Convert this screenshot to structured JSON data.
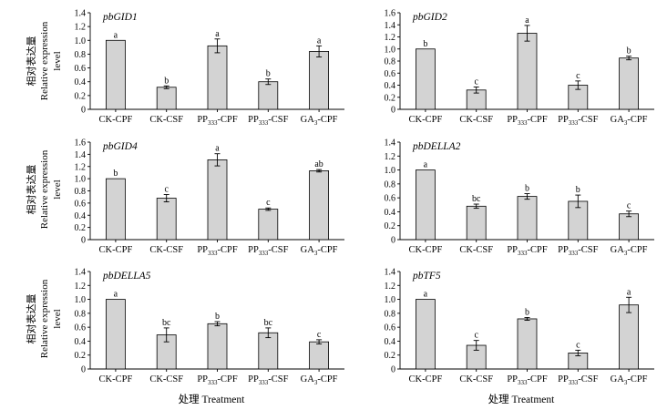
{
  "x_axis_label": "处理 Treatment",
  "y_axis_label_cn": "相对表达量",
  "y_axis_label_en1": "Relative expression",
  "y_axis_label_en2": "level",
  "chart_data": [
    {
      "type": "bar",
      "title": "pbGID1",
      "categories": [
        "CK-CPF",
        "CK-CSF",
        "PP333-CPF",
        "PP333-CSF",
        "GA3-CPF"
      ],
      "values": [
        1.0,
        0.32,
        0.92,
        0.4,
        0.84
      ],
      "errors": [
        0.0,
        0.02,
        0.1,
        0.04,
        0.08
      ],
      "labels": [
        "a",
        "b",
        "a",
        "b",
        "a"
      ],
      "ylim": [
        0,
        1.4
      ],
      "yticks": [
        0,
        0.2,
        0.4,
        0.6,
        0.8,
        1.0,
        1.2,
        1.4
      ]
    },
    {
      "type": "bar",
      "title": "pbGID2",
      "categories": [
        "CK-CPF",
        "CK-CSF",
        "PP333-CPF",
        "PP333-CSF",
        "GA3-CPF"
      ],
      "values": [
        1.0,
        0.32,
        1.26,
        0.4,
        0.85
      ],
      "errors": [
        0.0,
        0.05,
        0.13,
        0.07,
        0.03
      ],
      "labels": [
        "b",
        "c",
        "a",
        "c",
        "b"
      ],
      "ylim": [
        0,
        1.6
      ],
      "yticks": [
        0,
        0.2,
        0.4,
        0.6,
        0.8,
        1.0,
        1.2,
        1.4,
        1.6
      ]
    },
    {
      "type": "bar",
      "title": "pbGID4",
      "categories": [
        "CK-CPF",
        "CK-CSF",
        "PP333-CPF",
        "PP333-CSF",
        "GA3-CPF"
      ],
      "values": [
        1.0,
        0.68,
        1.31,
        0.5,
        1.13
      ],
      "errors": [
        0.0,
        0.06,
        0.1,
        0.02,
        0.02
      ],
      "labels": [
        "b",
        "c",
        "a",
        "c",
        "ab"
      ],
      "ylim": [
        0,
        1.6
      ],
      "yticks": [
        0,
        0.2,
        0.4,
        0.6,
        0.8,
        1.0,
        1.2,
        1.4,
        1.6
      ]
    },
    {
      "type": "bar",
      "title": "pbDELLA2",
      "categories": [
        "CK-CPF",
        "CK-CSF",
        "PP333-CPF",
        "PP333-CSF",
        "GA3-CPF"
      ],
      "values": [
        1.0,
        0.48,
        0.62,
        0.55,
        0.37
      ],
      "errors": [
        0.0,
        0.03,
        0.04,
        0.09,
        0.04
      ],
      "labels": [
        "a",
        "bc",
        "b",
        "b",
        "c"
      ],
      "ylim": [
        0,
        1.4
      ],
      "yticks": [
        0,
        0.2,
        0.4,
        0.6,
        0.8,
        1.0,
        1.2,
        1.4
      ]
    },
    {
      "type": "bar",
      "title": "pbDELLA5",
      "categories": [
        "CK-CPF",
        "CK-CSF",
        "PP333-CPF",
        "PP333-CSF",
        "GA3-CPF"
      ],
      "values": [
        1.0,
        0.49,
        0.65,
        0.52,
        0.39
      ],
      "errors": [
        0.0,
        0.1,
        0.03,
        0.07,
        0.03
      ],
      "labels": [
        "a",
        "bc",
        "b",
        "bc",
        "c"
      ],
      "ylim": [
        0,
        1.4
      ],
      "yticks": [
        0,
        0.2,
        0.4,
        0.6,
        0.8,
        1.0,
        1.2,
        1.4
      ]
    },
    {
      "type": "bar",
      "title": "pbTF5",
      "categories": [
        "CK-CPF",
        "CK-CSF",
        "PP333-CPF",
        "PP333-CSF",
        "GA3-CPF"
      ],
      "values": [
        1.0,
        0.34,
        0.72,
        0.23,
        0.92
      ],
      "errors": [
        0.0,
        0.07,
        0.02,
        0.04,
        0.11
      ],
      "labels": [
        "a",
        "c",
        "b",
        "c",
        "a"
      ],
      "ylim": [
        0,
        1.4
      ],
      "yticks": [
        0,
        0.2,
        0.4,
        0.6,
        0.8,
        1.0,
        1.2,
        1.4
      ]
    }
  ]
}
